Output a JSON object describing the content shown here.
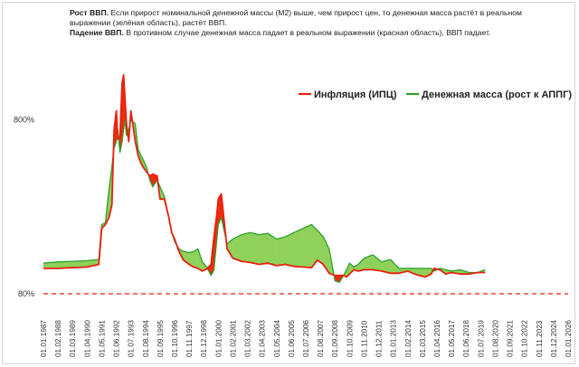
{
  "caption": {
    "line1_bold": "Рост ВВП.",
    "line1_text": " Если прирост номинальной денежной массы (М2) выше, чем прирост цен,  то денежная масса растёт в реальном выражении (зелёная область), растёт ВВП.",
    "line2_bold": "Падение ВВП.",
    "line2_text": " В противном случае денежная масса падает в реальном выражении (красная область), ВВП падает."
  },
  "chart_data": {
    "type": "area",
    "y_scale": "log",
    "ylim": [
      80,
      2000
    ],
    "y_ticks": [
      "80%",
      "800%"
    ],
    "y_tick_values": [
      80,
      800
    ],
    "grid": false,
    "legend": "top-right",
    "x_tick_labels": [
      "01.01.1987",
      "01.02.1988",
      "01.03.1989",
      "01.04.1990",
      "01.05.1991",
      "01.06.1992",
      "01.07.1993",
      "01.08.1994",
      "01.09.1995",
      "01.10.1996",
      "01.11.1997",
      "01.12.1998",
      "01.01.2000",
      "01.02.2001",
      "01.03.2002",
      "01.04.2003",
      "01.05.2004",
      "01.06.2005",
      "01.07.2006",
      "01.08.2007",
      "01.09.2008",
      "01.10.2009",
      "01.11.2010",
      "01.12.2011",
      "01.01.2013",
      "01.02.2014",
      "01.03.2015",
      "01.04.2016",
      "01.05.2017",
      "01.06.2018",
      "01.07.2019",
      "01.08.2020",
      "01.09.2021",
      "01.10.2022",
      "01.11.2023",
      "01.12.2024",
      "01.01.2026"
    ],
    "x_index_range": [
      0,
      36
    ],
    "x_index": [
      0,
      1,
      2,
      3,
      3.8,
      4.0,
      4.25,
      4.5,
      4.7,
      4.85,
      5.0,
      5.1,
      5.25,
      5.4,
      5.5,
      5.6,
      5.7,
      5.85,
      6.0,
      6.3,
      6.5,
      6.7,
      6.9,
      7.1,
      7.3,
      7.5,
      7.8,
      8.0,
      8.3,
      8.6,
      8.8,
      9.0,
      9.3,
      9.6,
      10.0,
      10.3,
      10.6,
      10.9,
      11.2,
      11.5,
      11.7,
      11.9,
      12.0,
      12.2,
      12.6,
      13.0,
      13.6,
      14.2,
      14.8,
      15.4,
      16.0,
      16.6,
      17.2,
      17.8,
      18.4,
      18.8,
      19.2,
      19.6,
      20.0,
      20.3,
      20.6,
      20.8,
      21.0,
      21.3,
      21.6,
      22.0,
      22.6,
      23.2,
      23.8,
      24.4,
      25.0,
      25.6,
      26.2,
      26.6,
      26.8,
      27.2,
      27.6,
      28.0,
      28.6,
      29.2,
      29.8,
      30.3
    ],
    "series": [
      {
        "name": "Инфляция (ИПЦ)",
        "color": "#e8200f",
        "values": [
          112,
          112,
          113,
          114,
          118,
          190,
          200,
          220,
          260,
          700,
          900,
          620,
          640,
          1300,
          1450,
          1050,
          760,
          600,
          900,
          600,
          500,
          450,
          420,
          400,
          380,
          390,
          380,
          280,
          280,
          220,
          180,
          165,
          140,
          125,
          118,
          114,
          112,
          108,
          111,
          118,
          170,
          230,
          280,
          300,
          145,
          128,
          123,
          121,
          118,
          120,
          116,
          118,
          115,
          114,
          113,
          125,
          118,
          105,
          102,
          102,
          102,
          100,
          104,
          110,
          108,
          110,
          110,
          108,
          105,
          105,
          108,
          103,
          100,
          104,
          112,
          110,
          104,
          106,
          104,
          104,
          106,
          106
        ]
      },
      {
        "name": "Денежная масса (рост к АППГ)",
        "color": "#2ca02c",
        "values": [
          120,
          122,
          123,
          124,
          126,
          200,
          205,
          320,
          430,
          550,
          600,
          700,
          520,
          600,
          700,
          800,
          650,
          700,
          800,
          760,
          540,
          500,
          460,
          420,
          360,
          330,
          360,
          330,
          290,
          220,
          180,
          160,
          145,
          140,
          138,
          140,
          145,
          122,
          114,
          102,
          110,
          165,
          200,
          220,
          155,
          165,
          175,
          180,
          175,
          178,
          165,
          170,
          180,
          190,
          200,
          185,
          170,
          145,
          95,
          93,
          102,
          110,
          120,
          114,
          118,
          128,
          134,
          122,
          126,
          112,
          112,
          112,
          112,
          112,
          108,
          112,
          110,
          108,
          110,
          106,
          106,
          110
        ]
      }
    ]
  }
}
